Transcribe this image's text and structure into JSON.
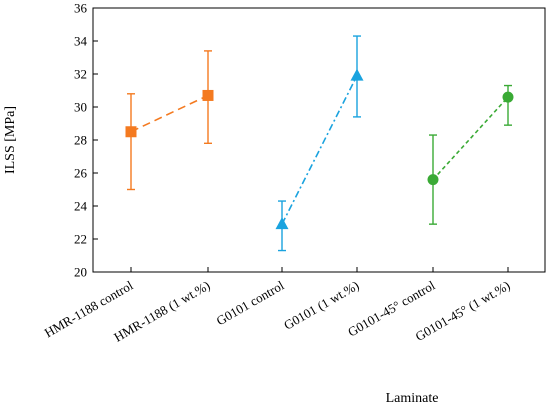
{
  "chart_data": {
    "type": "scatter",
    "xlabel": "Laminate",
    "ylabel": "ILSS [MPa]",
    "ylim": [
      20,
      36
    ],
    "yticks": [
      20,
      22,
      24,
      26,
      28,
      30,
      32,
      34,
      36
    ],
    "categories": [
      "HMR-1188 control",
      "HMR-1188 (1 wt.%)",
      "G0101 control",
      "G0101 (1 wt.%)",
      "G0101-45° control",
      "G0101-45° (1 wt.%)"
    ],
    "grid": false,
    "series": [
      {
        "color": "#F47A20",
        "marker": "square",
        "line_style": "dashed",
        "category_index": [
          0,
          1
        ],
        "values": [
          28.5,
          30.7
        ],
        "error_low": [
          25.0,
          27.8
        ],
        "error_high": [
          30.8,
          33.4
        ]
      },
      {
        "color": "#1AA3DF",
        "marker": "triangle",
        "line_style": "dash-dot",
        "category_index": [
          2,
          3
        ],
        "values": [
          22.9,
          31.9
        ],
        "error_low": [
          21.3,
          29.4
        ],
        "error_high": [
          24.3,
          34.3
        ]
      },
      {
        "color": "#3AAA35",
        "marker": "circle",
        "line_style": "dotted",
        "category_index": [
          4,
          5
        ],
        "values": [
          25.6,
          30.6
        ],
        "error_low": [
          22.9,
          28.9
        ],
        "error_high": [
          28.3,
          31.3
        ]
      }
    ]
  }
}
